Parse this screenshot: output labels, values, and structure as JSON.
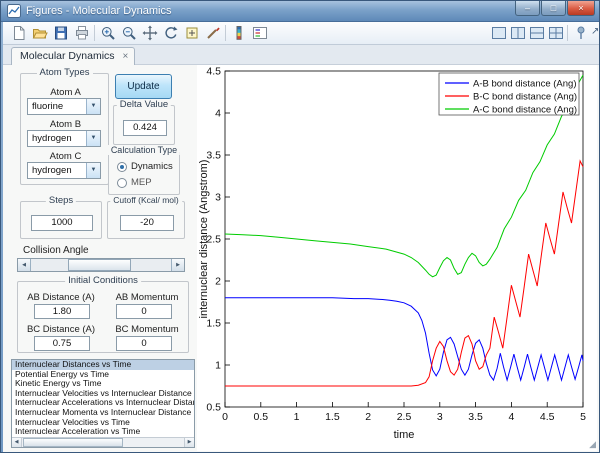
{
  "window": {
    "title": "Figures - Molecular Dynamics"
  },
  "icons": {
    "dropdown_arrow": "▼",
    "slider_left": "◀",
    "slider_right": "▶",
    "window_min": "–",
    "window_max": "□",
    "window_close": "×",
    "tab_close": "×",
    "undock": "↗",
    "corner_grip": "◢"
  },
  "toolbar": {
    "left_icons": [
      "new-figure",
      "open-file",
      "save-figure",
      "print-figure",
      "zoom-in",
      "zoom-out",
      "pan",
      "rotate-3d",
      "data-cursor",
      "brush-data",
      "insert-colorbar",
      "insert-legend"
    ],
    "right_icons": [
      "tile-single",
      "tile-columns",
      "tile-rows",
      "tile-grid",
      "dock-pin",
      "undock-arrow"
    ]
  },
  "tab": {
    "label": "Molecular Dynamics"
  },
  "controls": {
    "atom_types": {
      "title": "Atom Types",
      "fields": [
        {
          "label": "Atom A",
          "value": "fluorine"
        },
        {
          "label": "Atom B",
          "value": "hydrogen"
        },
        {
          "label": "Atom C",
          "value": "hydrogen"
        }
      ]
    },
    "update_button": {
      "label": "Update"
    },
    "delta_value": {
      "title": "Delta Value",
      "value": "0.424"
    },
    "calculation_type": {
      "title": "Calculation Type",
      "options": [
        {
          "label": "Dynamics",
          "selected": true
        },
        {
          "label": "MEP",
          "selected": false
        }
      ]
    },
    "steps": {
      "title": "Steps",
      "value": "1000"
    },
    "cutoff": {
      "title": "Cutoff (Kcal/ mol)",
      "value": "-20"
    },
    "collision_angle": {
      "title": "Collision Angle"
    },
    "initial_conditions": {
      "title": "Initial Conditions",
      "fields": [
        {
          "label": "AB Distance (A)",
          "value": "1.80"
        },
        {
          "label": "AB Momentum",
          "value": "0"
        },
        {
          "label": "BC Distance (A)",
          "value": "0.75"
        },
        {
          "label": "BC Momentum",
          "value": "0"
        }
      ]
    },
    "plot_list": {
      "selected_index": 0,
      "items": [
        "Internuclear Distances vs Time",
        "Potential Energy vs Time",
        "Kinetic Energy vs Time",
        "Internuclear Velocities vs Internuclear Distance",
        "Internuclear Accelerations vs Internuclear Distance",
        "Internuclear Momenta vs Internuclear Distance",
        "Internuclear Velocities vs Time",
        "Internuclear Acceleration vs Time"
      ]
    }
  },
  "chart_data": {
    "type": "line",
    "title": "",
    "xlabel": "time",
    "ylabel": "internuclear distance (Angstrom)",
    "xlim": [
      0,
      5
    ],
    "ylim": [
      0.5,
      4.5
    ],
    "grid": false,
    "legend_position": "top-right",
    "x_ticks": [
      0,
      0.5,
      1,
      1.5,
      2,
      2.5,
      3,
      3.5,
      4,
      4.5,
      5
    ],
    "x_tick_labels": [
      "0",
      "0.5",
      "1",
      "1.5",
      "2",
      "2.5",
      "3",
      "3.5",
      "4",
      "4.5",
      "5"
    ],
    "y_ticks": [
      0.5,
      1,
      1.5,
      2,
      2.5,
      3,
      3.5,
      4,
      4.5
    ],
    "y_tick_labels": [
      "0.5",
      "1",
      "1.5",
      "2",
      "2.5",
      "3",
      "3.5",
      "4",
      "4.5"
    ],
    "series": [
      {
        "name": "A-B bond distance (Ang)",
        "color": "#0000ff",
        "points": [
          [
            0,
            1.8
          ],
          [
            0.3,
            1.8
          ],
          [
            0.6,
            1.8
          ],
          [
            0.9,
            1.8
          ],
          [
            1.2,
            1.8
          ],
          [
            1.5,
            1.8
          ],
          [
            1.8,
            1.79
          ],
          [
            2.0,
            1.79
          ],
          [
            2.2,
            1.78
          ],
          [
            2.3,
            1.77
          ],
          [
            2.4,
            1.76
          ],
          [
            2.5,
            1.74
          ],
          [
            2.6,
            1.7
          ],
          [
            2.7,
            1.62
          ],
          [
            2.75,
            1.53
          ],
          [
            2.8,
            1.38
          ],
          [
            2.85,
            1.14
          ],
          [
            2.9,
            0.94
          ],
          [
            2.95,
            0.87
          ],
          [
            3.0,
            0.95
          ],
          [
            3.05,
            1.15
          ],
          [
            3.1,
            1.3
          ],
          [
            3.15,
            1.33
          ],
          [
            3.2,
            1.25
          ],
          [
            3.25,
            1.1
          ],
          [
            3.3,
            0.95
          ],
          [
            3.35,
            0.88
          ],
          [
            3.4,
            0.95
          ],
          [
            3.45,
            1.12
          ],
          [
            3.5,
            1.26
          ],
          [
            3.55,
            1.3
          ],
          [
            3.6,
            1.2
          ],
          [
            3.65,
            1.02
          ],
          [
            3.7,
            0.88
          ],
          [
            3.75,
            0.82
          ],
          [
            3.8,
            0.96
          ],
          [
            3.845,
            1.14
          ],
          [
            3.89,
            0.98
          ],
          [
            3.94,
            0.82
          ],
          [
            3.99,
            0.98
          ],
          [
            4.035,
            1.13
          ],
          [
            4.08,
            0.98
          ],
          [
            4.13,
            0.82
          ],
          [
            4.18,
            0.98
          ],
          [
            4.225,
            1.13
          ],
          [
            4.27,
            0.98
          ],
          [
            4.32,
            0.82
          ],
          [
            4.37,
            0.98
          ],
          [
            4.415,
            1.12
          ],
          [
            4.46,
            0.98
          ],
          [
            4.51,
            0.82
          ],
          [
            4.56,
            0.98
          ],
          [
            4.605,
            1.12
          ],
          [
            4.65,
            0.98
          ],
          [
            4.7,
            0.82
          ],
          [
            4.75,
            0.98
          ],
          [
            4.795,
            1.12
          ],
          [
            4.84,
            0.98
          ],
          [
            4.89,
            0.83
          ],
          [
            4.94,
            0.98
          ],
          [
            4.985,
            1.12
          ],
          [
            5,
            1.05
          ]
        ]
      },
      {
        "name": "B-C bond distance (Ang)",
        "color": "#ff0000",
        "points": [
          [
            0,
            0.75
          ],
          [
            0.5,
            0.75
          ],
          [
            1,
            0.75
          ],
          [
            1.5,
            0.75
          ],
          [
            2,
            0.75
          ],
          [
            2.4,
            0.75
          ],
          [
            2.6,
            0.75
          ],
          [
            2.7,
            0.76
          ],
          [
            2.8,
            0.79
          ],
          [
            2.85,
            0.86
          ],
          [
            2.9,
            1.05
          ],
          [
            2.95,
            1.2
          ],
          [
            3.0,
            1.28
          ],
          [
            3.05,
            1.22
          ],
          [
            3.1,
            1.05
          ],
          [
            3.15,
            0.92
          ],
          [
            3.2,
            0.88
          ],
          [
            3.25,
            0.95
          ],
          [
            3.3,
            1.15
          ],
          [
            3.35,
            1.32
          ],
          [
            3.4,
            1.35
          ],
          [
            3.45,
            1.25
          ],
          [
            3.5,
            1.05
          ],
          [
            3.55,
            0.95
          ],
          [
            3.6,
            0.98
          ],
          [
            3.65,
            1.12
          ],
          [
            3.7,
            1.2
          ],
          [
            3.76,
            1.57
          ],
          [
            3.82,
            1.39
          ],
          [
            3.88,
            1.2
          ],
          [
            3.94,
            1.57
          ],
          [
            4.0,
            1.95
          ],
          [
            4.06,
            1.76
          ],
          [
            4.12,
            1.57
          ],
          [
            4.18,
            1.94
          ],
          [
            4.24,
            2.32
          ],
          [
            4.3,
            2.13
          ],
          [
            4.36,
            1.94
          ],
          [
            4.42,
            2.32
          ],
          [
            4.48,
            2.69
          ],
          [
            4.54,
            2.5
          ],
          [
            4.6,
            2.32
          ],
          [
            4.66,
            2.69
          ],
          [
            4.72,
            3.06
          ],
          [
            4.78,
            2.87
          ],
          [
            4.84,
            2.69
          ],
          [
            4.9,
            3.06
          ],
          [
            4.96,
            3.43
          ],
          [
            5,
            3.36
          ]
        ]
      },
      {
        "name": "A-C bond distance (Ang)",
        "color": "#00cc00",
        "points": [
          [
            0,
            2.56
          ],
          [
            0.25,
            2.55
          ],
          [
            0.5,
            2.54
          ],
          [
            0.75,
            2.52
          ],
          [
            1,
            2.5
          ],
          [
            1.25,
            2.48
          ],
          [
            1.5,
            2.46
          ],
          [
            1.75,
            2.44
          ],
          [
            2,
            2.41
          ],
          [
            2.25,
            2.38
          ],
          [
            2.5,
            2.32
          ],
          [
            2.6,
            2.28
          ],
          [
            2.7,
            2.22
          ],
          [
            2.8,
            2.13
          ],
          [
            2.85,
            2.08
          ],
          [
            2.9,
            2.05
          ],
          [
            2.95,
            2.07
          ],
          [
            3.0,
            2.16
          ],
          [
            3.05,
            2.24
          ],
          [
            3.1,
            2.28
          ],
          [
            3.15,
            2.25
          ],
          [
            3.2,
            2.15
          ],
          [
            3.25,
            2.08
          ],
          [
            3.3,
            2.1
          ],
          [
            3.35,
            2.2
          ],
          [
            3.4,
            2.28
          ],
          [
            3.45,
            2.33
          ],
          [
            3.5,
            2.3
          ],
          [
            3.55,
            2.22
          ],
          [
            3.6,
            2.18
          ],
          [
            3.65,
            2.2
          ],
          [
            3.7,
            2.26
          ],
          [
            3.8,
            2.4
          ],
          [
            3.9,
            2.62
          ],
          [
            4.0,
            2.76
          ],
          [
            4.1,
            2.96
          ],
          [
            4.2,
            3.08
          ],
          [
            4.3,
            3.29
          ],
          [
            4.4,
            3.42
          ],
          [
            4.5,
            3.62
          ],
          [
            4.6,
            3.75
          ],
          [
            4.7,
            3.96
          ],
          [
            4.8,
            4.09
          ],
          [
            4.9,
            4.3
          ],
          [
            5,
            4.45
          ]
        ]
      }
    ]
  }
}
